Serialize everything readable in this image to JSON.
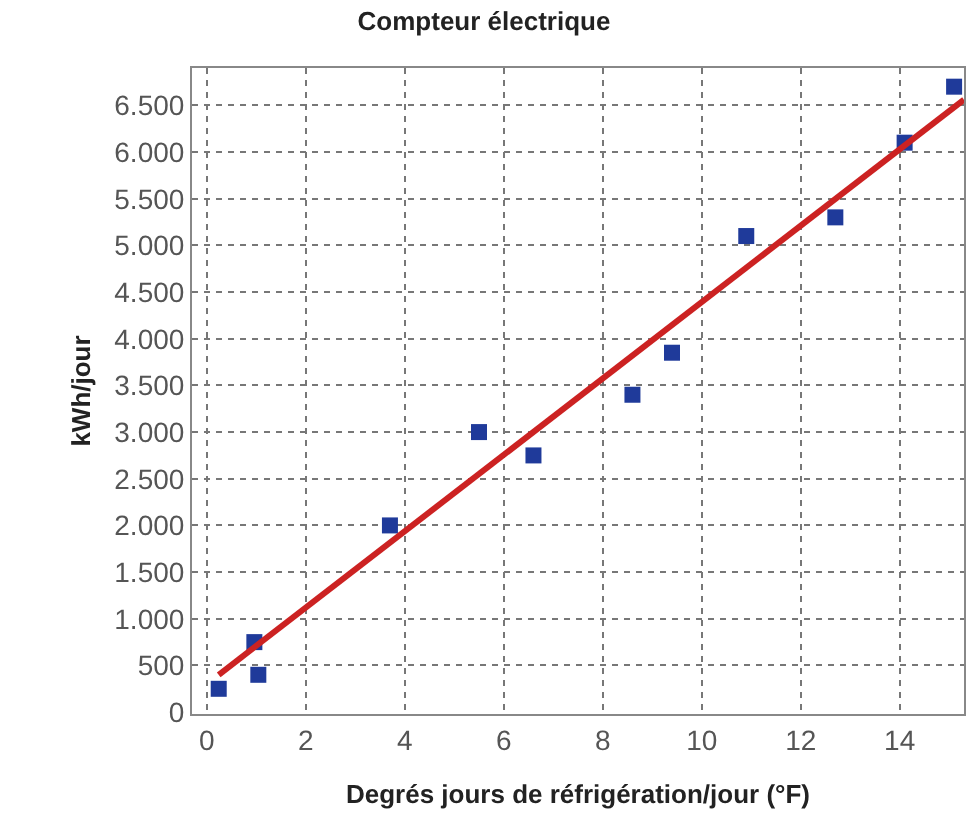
{
  "chart_data": {
    "type": "scatter",
    "title": "Compteur électrique",
    "xlabel": "Degrés jours de réfrigération/jour (°F)",
    "ylabel": "kWh/jour",
    "xlim": [
      -0.3,
      15.3
    ],
    "xticks": [
      0,
      2,
      4,
      6,
      8,
      10,
      12,
      14
    ],
    "ylim": [
      -20,
      6900
    ],
    "yticks": [
      0,
      {
        "value": 500,
        "label": "500"
      },
      {
        "value": 1000,
        "label": "1.000"
      },
      {
        "value": 1500,
        "label": "1.500"
      },
      {
        "value": 2000,
        "label": "2.000"
      },
      {
        "value": 2500,
        "label": "2.500"
      },
      {
        "value": 3000,
        "label": "3.000"
      },
      {
        "value": 3500,
        "label": "3.500"
      },
      {
        "value": 4000,
        "label": "4.000"
      },
      {
        "value": 4500,
        "label": "4.500"
      },
      {
        "value": 5000,
        "label": "5.000"
      },
      {
        "value": 5500,
        "label": "5.500"
      },
      {
        "value": 6000,
        "label": "6.000"
      },
      {
        "value": 6500,
        "label": "6.500"
      }
    ],
    "grid": true,
    "series": [
      {
        "marker": "square",
        "color": "#1f3a9a",
        "x": [
          0.24,
          0.96,
          1.04,
          3.7,
          5.5,
          6.6,
          8.6,
          9.4,
          10.9,
          12.7,
          14.1,
          15.1
        ],
        "values": [
          250,
          750,
          400,
          2000,
          3000,
          2750,
          3400,
          3850,
          5100,
          5300,
          6100,
          6700
        ]
      },
      {
        "type": "line",
        "marker": "none",
        "color": "#cc2222",
        "x": [
          0.24,
          15.3
        ],
        "values": [
          400,
          6560
        ]
      }
    ]
  }
}
